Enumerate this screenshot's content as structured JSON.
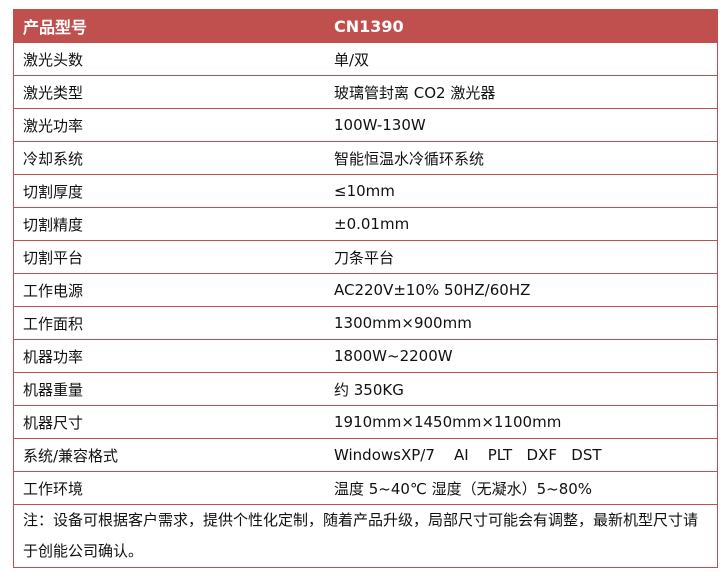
{
  "header": {
    "label": "产品型号",
    "value": "CN1390",
    "color": "#c0504d"
  },
  "rows": [
    {
      "label": "激光头数",
      "value": "单/双"
    },
    {
      "label": "激光类型",
      "value": "玻璃管封离 CO2 激光器"
    },
    {
      "label": "激光功率",
      "value": "100W-130W"
    },
    {
      "label": "冷却系统",
      "value": "智能恒温水冷循环系统"
    },
    {
      "label": "切割厚度",
      "value": "≤10mm"
    },
    {
      "label": "切割精度",
      "value": "±0.01mm"
    },
    {
      "label": "切割平台",
      "value": "刀条平台"
    },
    {
      "label": "工作电源",
      "value": "AC220V±10% 50HZ/60HZ"
    },
    {
      "label": "工作面积",
      "value": "1300mm×900mm"
    },
    {
      "label": "机器功率",
      "value": "1800W~2200W"
    },
    {
      "label": "机器重量",
      "value": "约 350KG"
    },
    {
      "label": "机器尺寸",
      "value": "1910mm×1450mm×1100mm"
    },
    {
      "label": "系统/兼容格式",
      "value": "WindowsXP/7    AI    PLT   DXF   DST"
    },
    {
      "label": "工作环境",
      "value": "温度 5~40℃ 湿度（无凝水）5~80%"
    }
  ],
  "note": "注：设备可根据客户需求，提供个性化定制，随着产品升级，局部尺寸可能会有调整，最新机型尺寸请于创能公司确认。"
}
